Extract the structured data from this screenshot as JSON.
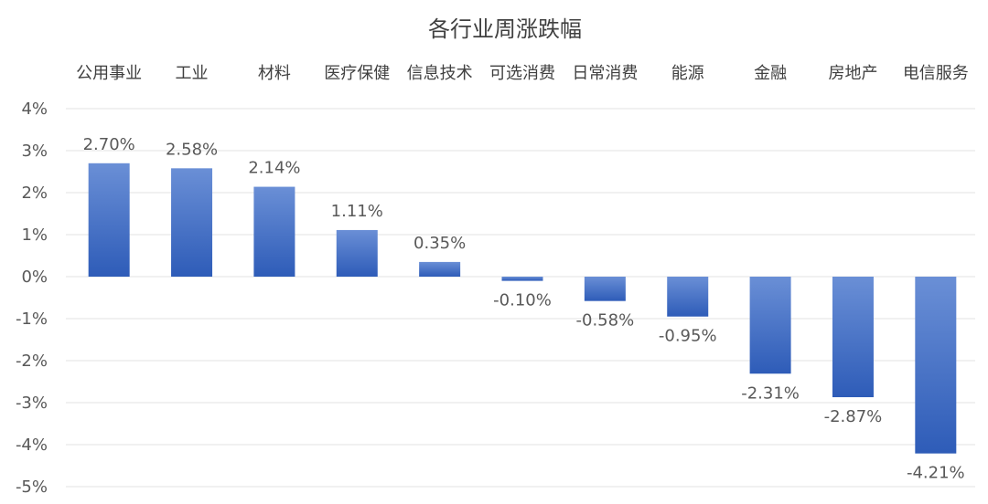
{
  "chart_data": {
    "type": "bar",
    "title": "各行业周涨跌幅",
    "xlabel": "",
    "ylabel": "",
    "categories": [
      "公用事业",
      "工业",
      "材料",
      "医疗保健",
      "信息技术",
      "可选消费",
      "日常消费",
      "能源",
      "金融",
      "房地产",
      "电信服务"
    ],
    "values": [
      2.7,
      2.58,
      2.14,
      1.11,
      0.35,
      -0.1,
      -0.58,
      -0.95,
      -2.31,
      -2.87,
      -4.21
    ],
    "value_labels": [
      "2.70%",
      "2.58%",
      "2.14%",
      "1.11%",
      "0.35%",
      "-0.10%",
      "-0.58%",
      "-0.95%",
      "-2.31%",
      "-2.87%",
      "-4.21%"
    ],
    "ylim": [
      -5,
      4
    ],
    "yticks": [
      4,
      3,
      2,
      1,
      0,
      -1,
      -2,
      -3,
      -4,
      -5
    ],
    "ytick_labels": [
      "4%",
      "3%",
      "2%",
      "1%",
      "0%",
      "-1%",
      "-2%",
      "-3%",
      "-4%",
      "-5%"
    ],
    "category_axis_position": "top",
    "grid": true,
    "legend": "none",
    "colors": {
      "bar_top": "#6a8fd6",
      "bar_bottom": "#2e5cb8",
      "grid": "#e3e3e3",
      "text": "#404040"
    }
  }
}
